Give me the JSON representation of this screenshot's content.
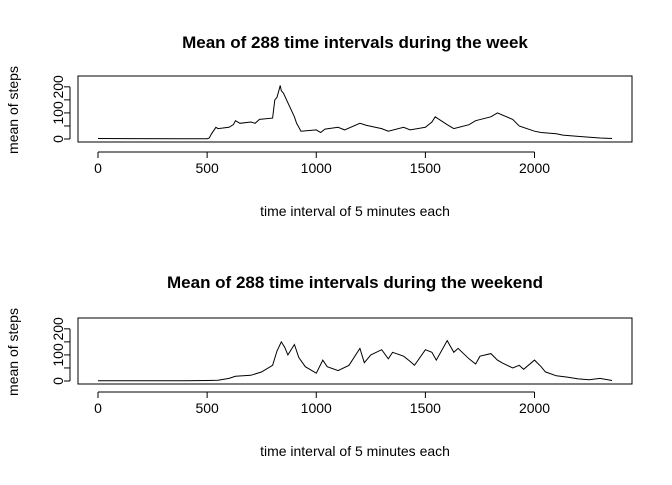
{
  "chart_data": [
    {
      "type": "line",
      "title": "Mean of 288 time intervals during the week",
      "xlabel": "time interval of 5 minutes each",
      "ylabel": "mean of steps",
      "xlim": [
        0,
        2355
      ],
      "ylim": [
        0,
        230
      ],
      "xticks": [
        0,
        500,
        1000,
        1500,
        2000
      ],
      "yticks": [
        0,
        50,
        100,
        150,
        200
      ],
      "ytick_labels": [
        "0",
        "",
        "100",
        "",
        "200"
      ],
      "grid": false,
      "series": [
        {
          "x": [
            0,
            400,
            500,
            510,
            520,
            540,
            550,
            600,
            620,
            630,
            650,
            700,
            720,
            740,
            800,
            810,
            820,
            830,
            835,
            840,
            850,
            900,
            910,
            920,
            930,
            1000,
            1020,
            1040,
            1100,
            1130,
            1200,
            1230,
            1300,
            1330,
            1400,
            1430,
            1500,
            1530,
            1545,
            1600,
            1630,
            1700,
            1730,
            1800,
            1830,
            1900,
            1930,
            2000,
            2030,
            2100,
            2130,
            2200,
            2230,
            2300,
            2355
          ],
          "y": [
            2,
            1,
            1,
            4,
            20,
            45,
            40,
            45,
            55,
            70,
            60,
            65,
            60,
            75,
            80,
            150,
            160,
            190,
            205,
            185,
            175,
            85,
            60,
            45,
            30,
            35,
            25,
            38,
            45,
            35,
            60,
            52,
            40,
            30,
            45,
            35,
            45,
            65,
            85,
            55,
            40,
            55,
            70,
            85,
            100,
            75,
            50,
            30,
            25,
            20,
            15,
            10,
            8,
            4,
            2
          ]
        }
      ]
    },
    {
      "type": "line",
      "title": "Mean of 288 time intervals during the weekend",
      "xlabel": "time interval of 5 minutes each",
      "ylabel": "mean of steps",
      "xlim": [
        0,
        2355
      ],
      "ylim": [
        0,
        230
      ],
      "xticks": [
        0,
        500,
        1000,
        1500,
        2000
      ],
      "yticks": [
        0,
        50,
        100,
        150,
        200
      ],
      "ytick_labels": [
        "0",
        "",
        "100",
        "",
        "200"
      ],
      "grid": false,
      "series": [
        {
          "x": [
            0,
            400,
            500,
            550,
            600,
            630,
            700,
            750,
            800,
            820,
            840,
            855,
            870,
            900,
            920,
            950,
            1000,
            1030,
            1050,
            1100,
            1150,
            1200,
            1220,
            1250,
            1300,
            1330,
            1350,
            1400,
            1430,
            1450,
            1500,
            1530,
            1550,
            1600,
            1630,
            1650,
            1700,
            1730,
            1750,
            1800,
            1830,
            1850,
            1900,
            1930,
            1950,
            2000,
            2030,
            2050,
            2100,
            2150,
            2200,
            2250,
            2300,
            2355
          ],
          "y": [
            1,
            1,
            2,
            3,
            10,
            18,
            22,
            35,
            60,
            115,
            150,
            130,
            100,
            140,
            90,
            55,
            30,
            80,
            55,
            40,
            60,
            125,
            70,
            100,
            120,
            85,
            110,
            95,
            75,
            60,
            120,
            110,
            80,
            155,
            110,
            125,
            85,
            65,
            95,
            105,
            80,
            70,
            50,
            60,
            45,
            80,
            55,
            35,
            20,
            15,
            8,
            5,
            10,
            2
          ]
        }
      ]
    }
  ]
}
